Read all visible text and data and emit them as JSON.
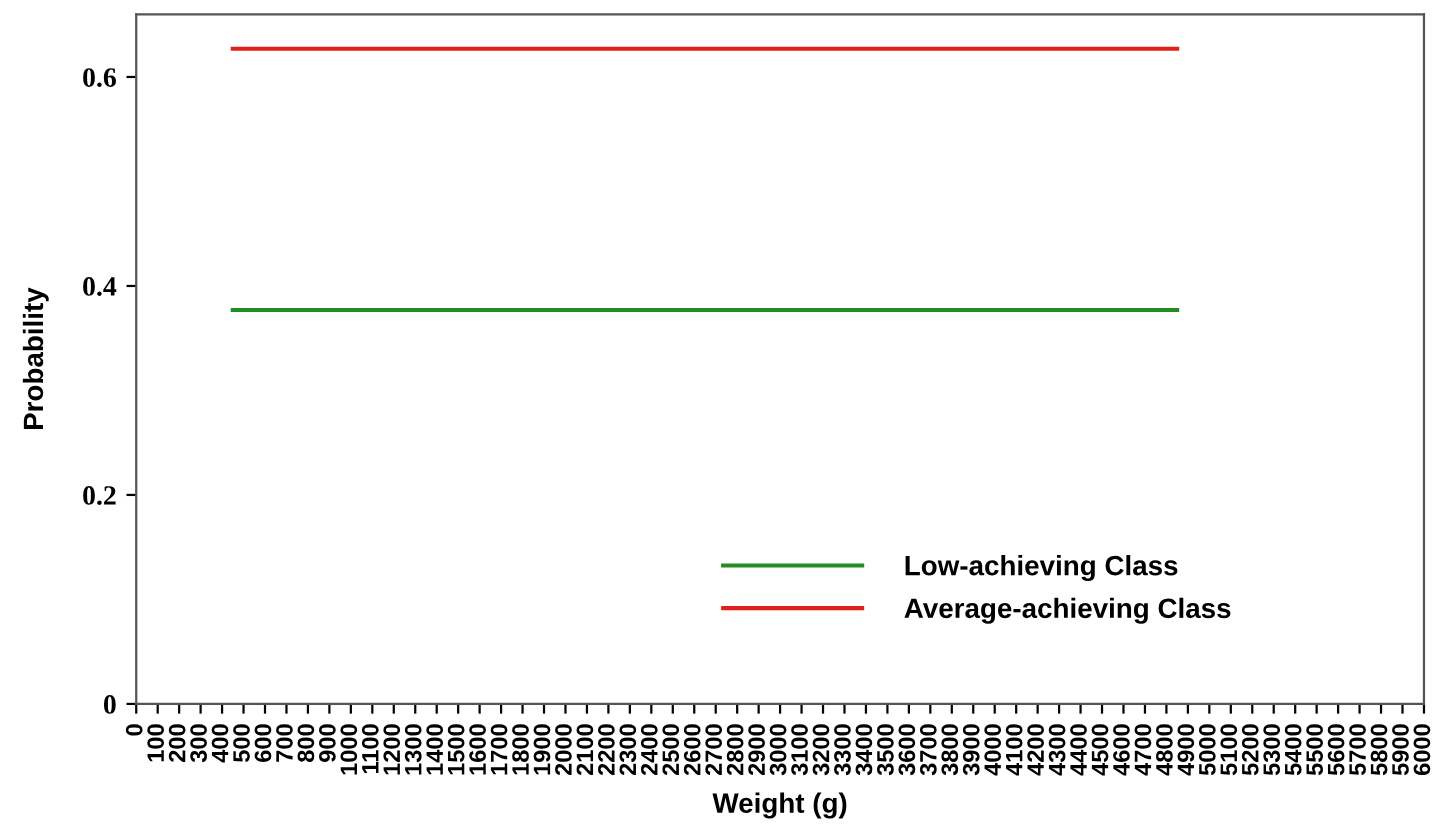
{
  "chart_data": {
    "type": "line",
    "xlabel": "Weight (g)",
    "ylabel": "Probability",
    "x": [
      450,
      4850
    ],
    "series": [
      {
        "name": "Low-achieving Class",
        "color": "#228b22",
        "values": [
          0.377,
          0.377
        ]
      },
      {
        "name": "Average-achieving Class",
        "color": "#e0201b",
        "values": [
          0.627,
          0.627
        ]
      }
    ],
    "xlim": [
      0,
      6000
    ],
    "xticks": [
      0,
      100,
      200,
      300,
      400,
      500,
      600,
      700,
      800,
      900,
      1000,
      1100,
      1200,
      1300,
      1400,
      1500,
      1600,
      1700,
      1800,
      1900,
      2000,
      2100,
      2200,
      2300,
      2400,
      2500,
      2600,
      2700,
      2800,
      2900,
      3000,
      3100,
      3200,
      3300,
      3400,
      3500,
      3600,
      3700,
      3800,
      3900,
      4000,
      4100,
      4200,
      4300,
      4400,
      4500,
      4600,
      4700,
      4800,
      4900,
      5000,
      5100,
      5200,
      5300,
      5400,
      5500,
      5600,
      5700,
      5800,
      5900,
      6000
    ],
    "ylim": [
      0,
      0.66
    ],
    "yticks": [
      0,
      0.2,
      0.4,
      0.6
    ],
    "grid": false,
    "legend": "bottom right",
    "marker": "none",
    "line_style": "solid"
  }
}
